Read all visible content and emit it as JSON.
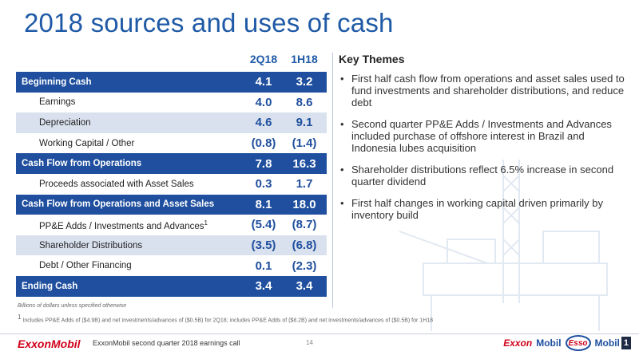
{
  "slide": {
    "title": "2018 sources and uses of cash"
  },
  "table": {
    "columns": [
      "2Q18",
      "1H18"
    ],
    "rows": [
      {
        "label": "Beginning Cash",
        "v1": "4.1",
        "v2": "3.2",
        "style": "dark"
      },
      {
        "label": "Earnings",
        "v1": "4.0",
        "v2": "8.6",
        "style": "white"
      },
      {
        "label": "Depreciation",
        "v1": "4.6",
        "v2": "9.1",
        "style": "light"
      },
      {
        "label": "Working Capital / Other",
        "v1": "(0.8)",
        "v2": "(1.4)",
        "style": "white"
      },
      {
        "label": "Cash Flow from Operations",
        "v1": "7.8",
        "v2": "16.3",
        "style": "dark"
      },
      {
        "label": "Proceeds associated with Asset Sales",
        "v1": "0.3",
        "v2": "1.7",
        "style": "white"
      },
      {
        "label": "Cash Flow from Operations and Asset Sales",
        "v1": "8.1",
        "v2": "18.0",
        "style": "dark"
      },
      {
        "label": "PP&E Adds / Investments and Advances",
        "label_sup": "1",
        "v1": "(5.4)",
        "v2": "(8.7)",
        "style": "white"
      },
      {
        "label": "Shareholder Distributions",
        "v1": "(3.5)",
        "v2": "(6.8)",
        "style": "light"
      },
      {
        "label": "Debt / Other Financing",
        "v1": "0.1",
        "v2": "(2.3)",
        "style": "white"
      },
      {
        "label": "Ending Cash",
        "v1": "3.4",
        "v2": "3.4",
        "style": "dark"
      }
    ]
  },
  "notes": {
    "units": "Billions of dollars unless specified otherwise",
    "footnote_marker": "1",
    "footnote": "Includes PP&E Adds of ($4.9B) and net investments/advances of ($0.5B) for 2Q18; includes PP&E Adds of ($8.2B) and net investments/advances of ($0.5B) for 1H18"
  },
  "themes": {
    "heading": "Key Themes",
    "items": [
      "First half cash flow from operations and asset sales used to fund investments and shareholder distributions, and reduce debt",
      "Second quarter PP&E Adds / Investments and Advances included purchase of offshore interest in Brazil and Indonesia lubes acquisition",
      "Shareholder distributions reflect 6.5% increase in second quarter dividend",
      "First half changes in working capital driven primarily by inventory build"
    ]
  },
  "footer": {
    "logo": "ExxonMobil",
    "text": "ExxonMobil second quarter 2018 earnings call",
    "page": "14",
    "brands": {
      "exxon": "Exxon",
      "mobil": "Mobil",
      "esso": "Esso",
      "mobil1_text": "Mobil",
      "mobil1_num": "1"
    }
  },
  "colors": {
    "title_blue": "#1f5aa6",
    "row_dark": "#1f4f9e",
    "row_light": "#d9e1ee",
    "brand_red": "#d0021b"
  }
}
